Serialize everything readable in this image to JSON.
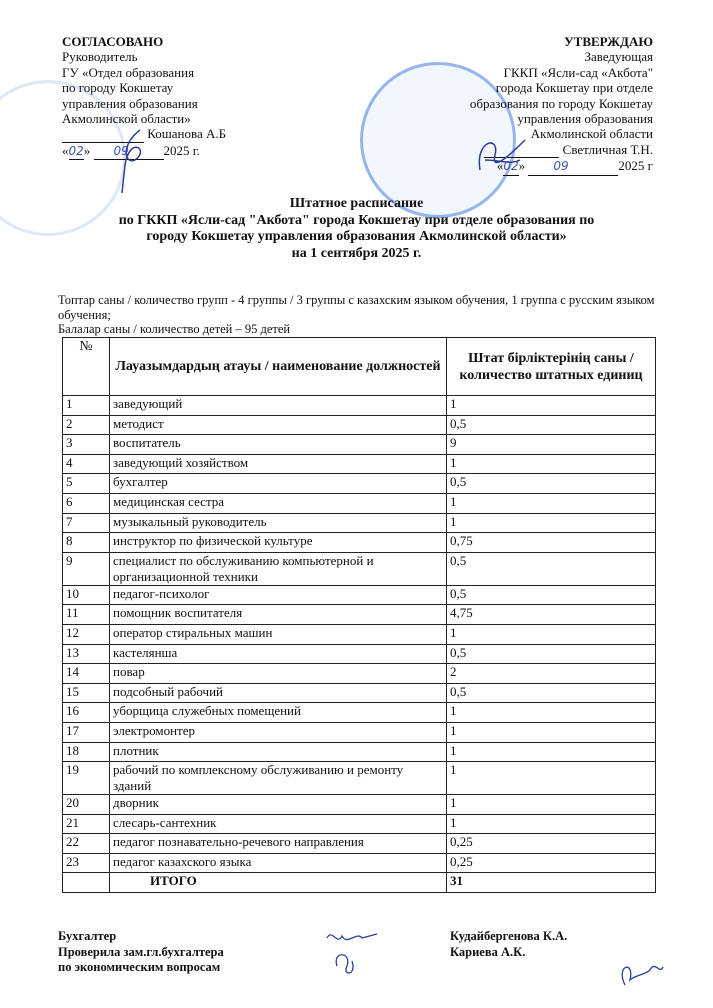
{
  "approval_left": {
    "heading": "СОГЛАСОВАНО",
    "lines": [
      "Руководитель",
      "ГУ «Отдел образования",
      "по городу Кокшетау",
      "управления образования",
      "Акмолинской области»"
    ],
    "signer": "Кошанова А.Б",
    "date_day": "02",
    "date_month": "09",
    "date_year": "2025 г."
  },
  "approval_right": {
    "heading": "УТВЕРЖДАЮ",
    "lines": [
      "Заведующая",
      "ГККП «Ясли-сад «Акбота\"",
      "города Кокшетау при отделе",
      "образования по городу Кокшетау",
      "управления образования",
      "Акмолинской области"
    ],
    "signer": "Светличная Т.Н.",
    "date_day": "02",
    "date_month": "09",
    "date_year": "2025 г"
  },
  "title": {
    "line1": "Штатное расписание",
    "line2": "по ГККП «Ясли-сад \"Акбота\" города Кокшетау при отделе образования по",
    "line3": "городу Кокшетау управления образования Акмолинской области»",
    "line4": "на 1 сентября 2025 г."
  },
  "info": {
    "groups": "Топтар саны / количество групп - 4 группы / 3 группы с казахским языком обучения, 1 группа с русским языком обучения;",
    "children": "Балалар саны / количество детей – 95 детей"
  },
  "table": {
    "headers": [
      "№",
      "Лауазымдардың атауы / наименование должностей",
      "Штат бірліктерінің саны / количество штатных единиц"
    ],
    "rows": [
      [
        "1",
        "заведующий",
        "1"
      ],
      [
        "2",
        "методист",
        "0,5"
      ],
      [
        "3",
        "воспитатель",
        "9"
      ],
      [
        "4",
        "заведующий хозяйством",
        "1"
      ],
      [
        "5",
        "бухгалтер",
        "0,5"
      ],
      [
        "6",
        "медицинская сестра",
        "1"
      ],
      [
        "7",
        "музыкальный руководитель",
        "1"
      ],
      [
        "8",
        "инструктор по физической культуре",
        "0,75"
      ],
      [
        "9",
        "специалист по обслуживанию компьютерной и организационной техники",
        "0,5"
      ],
      [
        "10",
        "педагог-психолог",
        "0,5"
      ],
      [
        "11",
        "помощник воспитателя",
        "4,75"
      ],
      [
        "12",
        "оператор стиральных машин",
        "1"
      ],
      [
        "13",
        "кастелянша",
        "0,5"
      ],
      [
        "14",
        "повар",
        "2"
      ],
      [
        "15",
        "подсобный  рабочий",
        "0,5"
      ],
      [
        "16",
        "уборщица служебных помещений",
        "1"
      ],
      [
        "17",
        "электромонтер",
        "1"
      ],
      [
        "18",
        "плотник",
        "1"
      ],
      [
        "19",
        "рабочий по комплексному  обслуживанию и ремонту зданий",
        "1"
      ],
      [
        "20",
        "дворник",
        "1"
      ],
      [
        "21",
        "слесарь-сантехник",
        "1"
      ],
      [
        "22",
        "педагог познавательно-речевого направления",
        "0,25"
      ],
      [
        "23",
        "педагог казахского языка",
        "0,25"
      ]
    ],
    "total_label": "ИТОГО",
    "total_value": "31"
  },
  "footer": {
    "left_lines": [
      "Бухгалтер",
      "Проверила зам.гл.бухгалтера",
      "по экономическим вопросам"
    ],
    "right_lines": [
      "Кудайбергенова К.А.",
      "Кариева А.К."
    ]
  },
  "colors": {
    "ink": "#111111",
    "stamp": "#4678d2"
  }
}
